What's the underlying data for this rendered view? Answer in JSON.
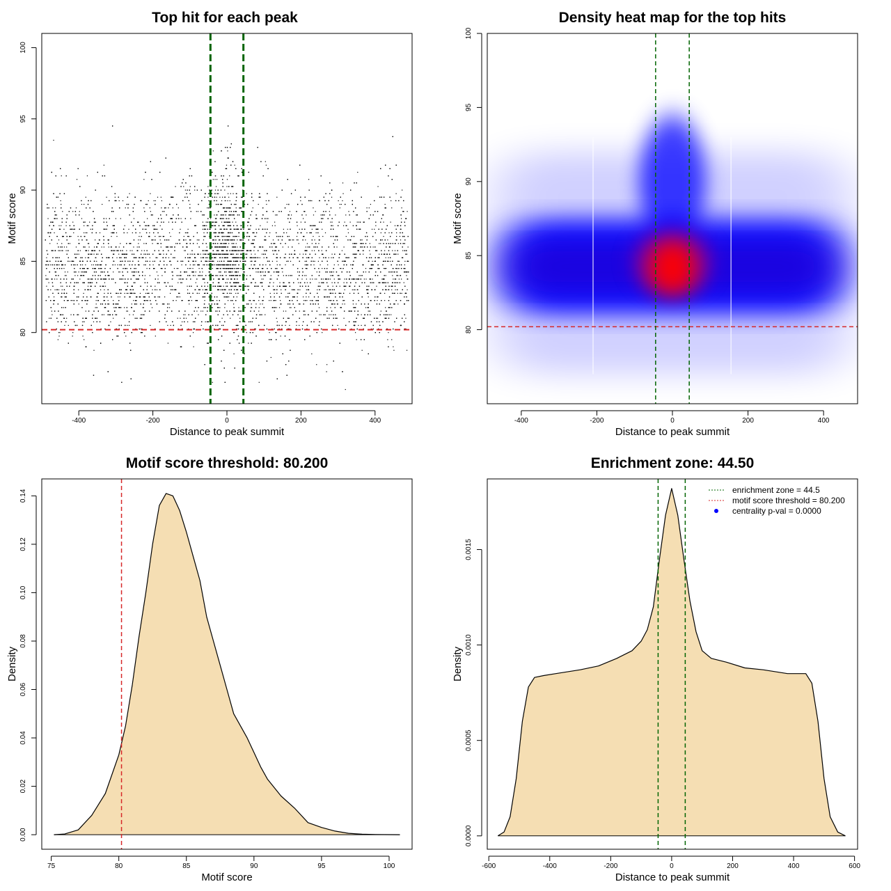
{
  "chart_data": [
    {
      "type": "scatter",
      "title": "Top hit for each peak",
      "xlabel": "Distance to peak summit",
      "ylabel": "Motif score",
      "xlim": [
        -500,
        500
      ],
      "ylim": [
        75,
        101
      ],
      "xticks": [
        -400,
        -200,
        0,
        200,
        400
      ],
      "yticks": [
        80,
        85,
        90,
        95,
        100
      ],
      "threshold_line": {
        "y": 80.2,
        "color": "#d62728",
        "style": "dashed"
      },
      "zone_lines": {
        "x": [
          -44.5,
          44.5
        ],
        "color": "#006400",
        "style": "dashed"
      },
      "point_distribution": {
        "x_range": [
          -490,
          490
        ],
        "score_mean": 84.5,
        "score_sd": 2.8,
        "n_points": 9000,
        "central_peak_sd": 30
      }
    },
    {
      "type": "heatmap",
      "title": "Density heat map for the top hits",
      "xlabel": "Distance to peak summit",
      "ylabel": "Motif score",
      "xlim": [
        -490,
        490
      ],
      "ylim": [
        75,
        100
      ],
      "xticks": [
        -400,
        -200,
        0,
        200,
        400
      ],
      "yticks": [
        80,
        85,
        90,
        95,
        100
      ],
      "colormap": [
        "#ffffff",
        "#0000ff",
        "#ff0000"
      ],
      "hotspot": {
        "x": 0,
        "y": 84.2
      },
      "threshold_line": {
        "y": 80.2,
        "color": "#d62728",
        "style": "dashed"
      },
      "zone_lines": {
        "x": [
          -44.5,
          44.5
        ],
        "color": "#006400",
        "style": "dashed"
      }
    },
    {
      "type": "area",
      "title": "Motif score threshold: 80.200",
      "xlabel": "Motif score",
      "ylabel": "Density",
      "xlim": [
        74.3,
        101.7
      ],
      "ylim": [
        -0.006,
        0.147
      ],
      "xticks": [
        75,
        80,
        85,
        90,
        95,
        100
      ],
      "yticks": [
        0.0,
        0.02,
        0.04,
        0.06,
        0.08,
        0.1,
        0.12,
        0.14
      ],
      "ytick_labels": [
        "0.00",
        "0.02",
        "0.04",
        "0.06",
        "0.08",
        "0.10",
        "0.12",
        "0.14"
      ],
      "fill_color": "#f5deb3",
      "x": [
        75.2,
        76,
        77,
        78,
        79,
        80,
        80.5,
        81,
        81.5,
        82,
        82.5,
        83,
        83.5,
        84,
        84.5,
        85,
        85.5,
        86,
        86.5,
        87,
        87.5,
        88,
        88.5,
        89,
        89.5,
        90,
        90.5,
        91,
        92,
        93,
        94,
        95,
        96,
        97,
        98,
        99,
        100.8
      ],
      "values": [
        0.0,
        0.0003,
        0.002,
        0.008,
        0.017,
        0.033,
        0.045,
        0.062,
        0.082,
        0.1,
        0.12,
        0.136,
        0.141,
        0.14,
        0.134,
        0.125,
        0.115,
        0.105,
        0.09,
        0.08,
        0.07,
        0.06,
        0.05,
        0.045,
        0.04,
        0.034,
        0.028,
        0.023,
        0.016,
        0.011,
        0.005,
        0.003,
        0.0015,
        0.0006,
        0.0002,
        0.0001,
        0.0
      ],
      "threshold_line": {
        "x": 80.2,
        "color": "#d62728",
        "style": "dashed"
      }
    },
    {
      "type": "area",
      "title": "Enrichment zone: 44.50",
      "xlabel": "Distance to peak summit",
      "ylabel": "Density",
      "xlim": [
        -605,
        610
      ],
      "ylim": [
        -7e-05,
        0.00187
      ],
      "xticks": [
        -600,
        -400,
        -200,
        0,
        200,
        400,
        600
      ],
      "yticks": [
        0.0,
        0.0005,
        0.001,
        0.0015
      ],
      "ytick_labels": [
        "0.0000",
        "0.0005",
        "0.0010",
        "0.0015"
      ],
      "fill_color": "#f5deb3",
      "x": [
        -570,
        -550,
        -530,
        -510,
        -490,
        -470,
        -450,
        -420,
        -380,
        -300,
        -240,
        -180,
        -130,
        -100,
        -80,
        -60,
        -40,
        -20,
        0,
        20,
        40,
        60,
        80,
        100,
        130,
        180,
        240,
        300,
        380,
        420,
        440,
        460,
        480,
        500,
        520,
        545,
        570
      ],
      "values": [
        0.0,
        2e-05,
        0.0001,
        0.0003,
        0.0006,
        0.00078,
        0.00083,
        0.00084,
        0.00085,
        0.00087,
        0.00089,
        0.00093,
        0.00097,
        0.00102,
        0.00108,
        0.0012,
        0.00145,
        0.00168,
        0.00182,
        0.00168,
        0.00145,
        0.00123,
        0.00107,
        0.00097,
        0.00093,
        0.00091,
        0.00088,
        0.00087,
        0.00085,
        0.00085,
        0.00085,
        0.0008,
        0.0006,
        0.0003,
        0.0001,
        2e-05,
        0.0
      ],
      "zone_lines": {
        "x": [
          -44.5,
          44.5
        ],
        "color": "#006400",
        "style": "dashed"
      },
      "legend": {
        "position": "top-right",
        "entries": [
          {
            "label": "enrichment zone = 44.5",
            "color": "#006400",
            "style": "dotted-line"
          },
          {
            "label": "motif score threshold = 80.200",
            "color": "#d62728",
            "style": "dotted-line"
          },
          {
            "label": "centrality p-val = 0.0000",
            "color": "#0000ff",
            "style": "dot"
          }
        ]
      }
    }
  ]
}
